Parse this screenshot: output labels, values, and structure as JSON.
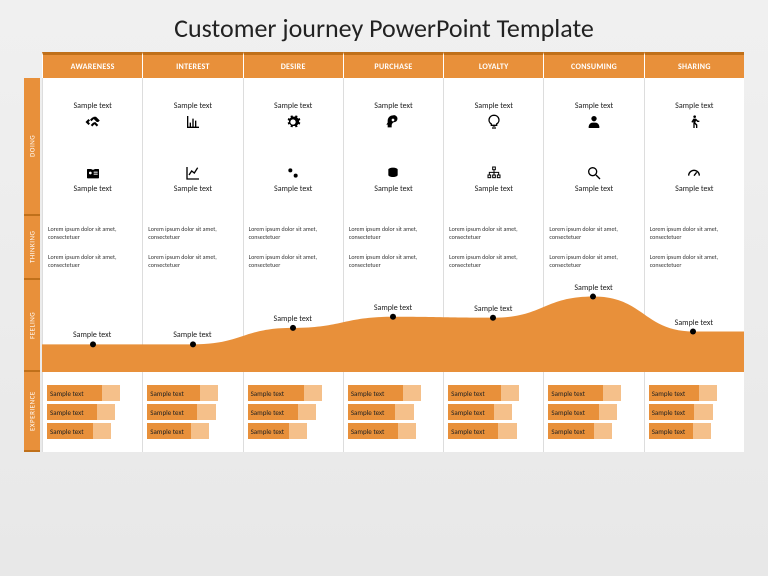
{
  "title": "Customer journey PowerPoint Template",
  "colors": {
    "accent": "#e8903a",
    "accentDark": "#c0701a",
    "accentLight": "#f5c08a",
    "bg": "#ffffff",
    "text": "#222222"
  },
  "stages": [
    "AWARENESS",
    "INTEREST",
    "DESIRE",
    "PURCHASE",
    "LOYALTY",
    "CONSUMING",
    "SHARING"
  ],
  "rows": [
    "DOING",
    "THINKING",
    "FEELING",
    "EXPERIENCE"
  ],
  "doing": {
    "row1": {
      "label": "Sample text",
      "icons": [
        "handshake",
        "bar-chart",
        "gear",
        "head-gear",
        "bulb",
        "person",
        "walk"
      ]
    },
    "row2": {
      "label": "Sample text",
      "icons": [
        "id-card",
        "line-chart",
        "gears",
        "coins",
        "org",
        "magnify",
        "gauge"
      ]
    }
  },
  "thinking": {
    "text": "Lorem ipsum dolor sit amet, consectetuer"
  },
  "feeling": {
    "label": "Sample text",
    "points": [
      70,
      70,
      52,
      40,
      41,
      18,
      56
    ],
    "fill": "#e8903a"
  },
  "experience": {
    "label": "Sample text",
    "bars": [
      [
        60,
        55,
        50
      ],
      [
        58,
        55,
        48
      ],
      [
        62,
        55,
        45
      ],
      [
        60,
        52,
        55
      ],
      [
        58,
        50,
        55
      ],
      [
        60,
        55,
        50
      ],
      [
        55,
        50,
        48
      ]
    ]
  }
}
